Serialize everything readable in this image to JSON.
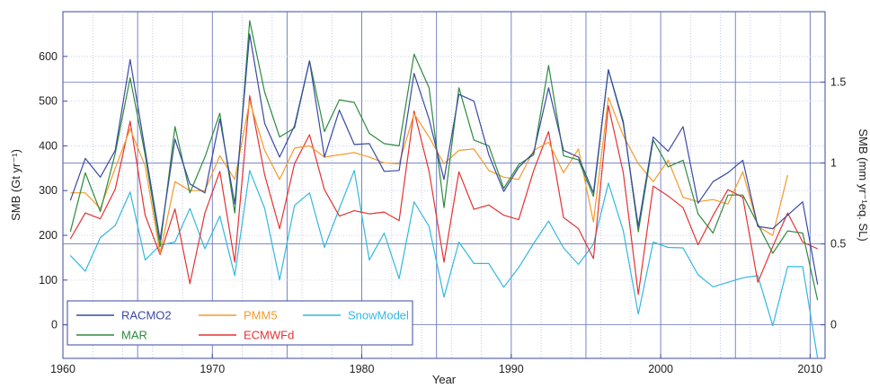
{
  "chart_data": {
    "type": "line",
    "title": "",
    "xlabel": "Year",
    "ylabel": "SMB (Gt yr⁻¹)",
    "ylabel_right": "SMB (mm yr⁻¹eq. SL)",
    "xlim": [
      1960,
      2011
    ],
    "ylim": [
      -75,
      700
    ],
    "ylim_right_note": "right axis = left axis / 361.8",
    "x_ticks": [
      "1960",
      "1970",
      "1980",
      "1990",
      "2000",
      "2010"
    ],
    "y_ticks": [
      "0",
      "100",
      "200",
      "300",
      "400",
      "500",
      "600"
    ],
    "y2_ticks": [
      "0",
      "0.5",
      "1",
      "1.5"
    ],
    "y2_tick_values": [
      0,
      0.5,
      1,
      1.5
    ],
    "grid": true,
    "legend_position": "bottom-left",
    "x": [
      1960.5,
      1961.5,
      1962.5,
      1963.5,
      1964.5,
      1965.5,
      1966.5,
      1967.5,
      1968.5,
      1969.5,
      1970.5,
      1971.5,
      1972.5,
      1973.5,
      1974.5,
      1975.5,
      1976.5,
      1977.5,
      1978.5,
      1979.5,
      1980.5,
      1981.5,
      1982.5,
      1983.5,
      1984.5,
      1985.5,
      1986.5,
      1987.5,
      1988.5,
      1989.5,
      1990.5,
      1991.5,
      1992.5,
      1993.5,
      1994.5,
      1995.5,
      1996.5,
      1997.5,
      1998.5,
      1999.5,
      2000.5,
      2001.5,
      2002.5,
      2003.5,
      2004.5,
      2005.5,
      2006.5,
      2007.5,
      2008.5,
      2009.5,
      2010.5
    ],
    "series": [
      {
        "name": "RACMO2",
        "color": "#3a4aa0",
        "values": [
          278,
          372,
          330,
          390,
          593,
          390,
          190,
          415,
          315,
          295,
          460,
          270,
          650,
          450,
          375,
          445,
          590,
          375,
          480,
          403,
          405,
          343,
          345,
          562,
          460,
          325,
          515,
          500,
          380,
          298,
          352,
          385,
          530,
          390,
          375,
          295,
          570,
          450,
          220,
          420,
          388,
          443,
          272,
          320,
          340,
          368,
          220,
          215,
          245,
          275,
          90
        ]
      },
      {
        "name": "MAR",
        "color": "#2e8a3e",
        "values": [
          208,
          340,
          253,
          383,
          552,
          380,
          175,
          443,
          295,
          375,
          473,
          250,
          680,
          520,
          420,
          440,
          590,
          432,
          503,
          497,
          428,
          405,
          400,
          605,
          530,
          262,
          530,
          413,
          400,
          305,
          358,
          380,
          580,
          378,
          369,
          287,
          570,
          455,
          208,
          413,
          353,
          368,
          248,
          205,
          290,
          290,
          225,
          160,
          210,
          205,
          55
        ]
      },
      {
        "name": "PMM5",
        "color": "#f59a2a",
        "values": [
          295,
          295,
          260,
          350,
          438,
          355,
          160,
          320,
          300,
          300,
          378,
          325,
          500,
          390,
          325,
          395,
          400,
          375,
          380,
          385,
          375,
          362,
          360,
          472,
          420,
          360,
          390,
          393,
          345,
          330,
          325,
          390,
          408,
          340,
          393,
          230,
          508,
          423,
          360,
          320,
          368,
          285,
          275,
          280,
          270,
          342,
          220,
          200,
          335,
          null,
          null
        ]
      },
      {
        "name": "ECMWFd",
        "color": "#e53232",
        "values": [
          192,
          250,
          237,
          303,
          455,
          245,
          157,
          259,
          92,
          250,
          343,
          140,
          512,
          335,
          215,
          360,
          425,
          302,
          243,
          255,
          248,
          252,
          233,
          478,
          343,
          140,
          342,
          258,
          268,
          245,
          235,
          345,
          432,
          240,
          215,
          148,
          490,
          340,
          68,
          310,
          288,
          262,
          179,
          244,
          302,
          285,
          95,
          175,
          250,
          185,
          170
        ]
      },
      {
        "name": "SnowModel",
        "color": "#33b8e0",
        "values": [
          155,
          120,
          195,
          222,
          297,
          145,
          178,
          185,
          260,
          170,
          243,
          110,
          345,
          260,
          100,
          267,
          295,
          173,
          260,
          345,
          145,
          205,
          103,
          275,
          220,
          62,
          185,
          137,
          137,
          84,
          128,
          182,
          232,
          172,
          135,
          180,
          317,
          210,
          24,
          185,
          173,
          172,
          112,
          85,
          95,
          105,
          110,
          -2,
          130,
          130,
          -75
        ]
      }
    ]
  }
}
